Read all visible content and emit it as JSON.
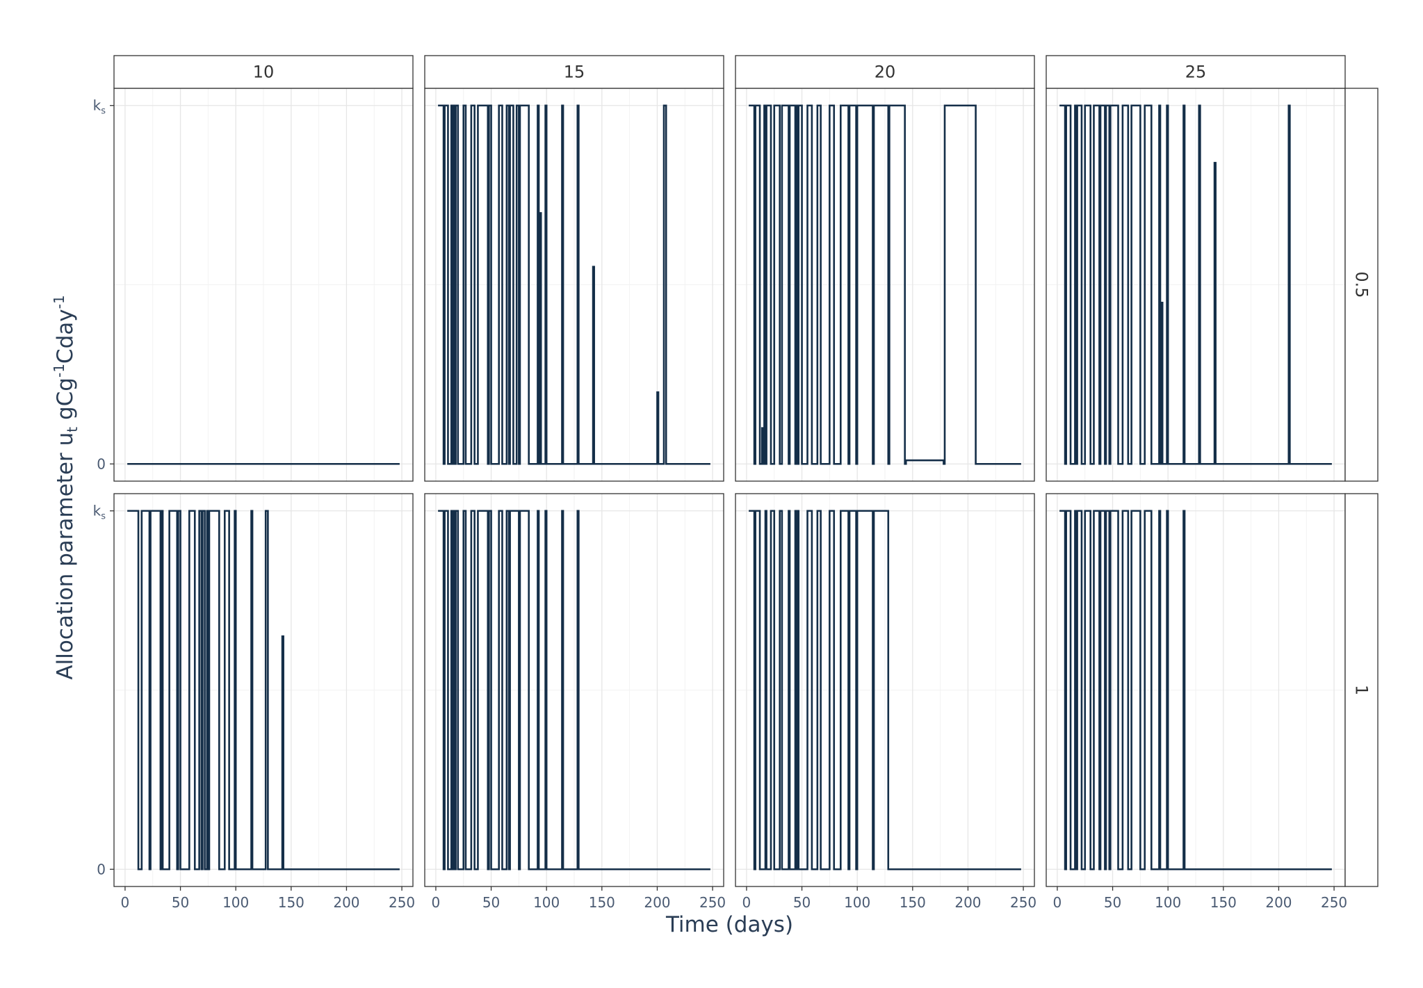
{
  "chart_data": {
    "type": "line",
    "layout": "facet-grid",
    "xlabel": "Time (days)",
    "ylabel": "Allocation parameter u",
    "ylabel_sub": "t",
    "ylabel_unit": " gCg",
    "ylabel_sup1": "-1",
    "ylabel_mid": "Cday",
    "ylabel_sup2": "-1",
    "xlim": [
      0,
      250
    ],
    "ylim": [
      0,
      1
    ],
    "x_ticks": [
      "0",
      "50",
      "100",
      "150",
      "200",
      "250"
    ],
    "y_ticks": [
      {
        "value": 0,
        "label": "0",
        "sub": ""
      },
      {
        "value": 1,
        "label": "k",
        "sub": "s"
      }
    ],
    "col_facets": [
      "10",
      "15",
      "20",
      "25"
    ],
    "row_facets": [
      "0.5",
      "1"
    ],
    "line_color": "#142e48",
    "grid": true,
    "panels": [
      {
        "col": "10",
        "row": "0.5",
        "x": [
          2,
          248
        ],
        "y": [
          0,
          0
        ]
      },
      {
        "col": "15",
        "row": "0.5",
        "x": [
          2,
          7,
          7,
          8,
          8,
          11,
          11,
          14,
          14,
          15,
          15,
          16,
          16,
          17,
          17,
          18,
          18,
          20,
          20,
          25,
          25,
          27,
          27,
          32,
          32,
          35,
          35,
          38,
          38,
          47,
          47,
          48,
          48,
          50,
          50,
          57,
          57,
          60,
          60,
          64,
          64,
          66,
          66,
          67,
          67,
          70,
          70,
          73,
          73,
          75,
          75,
          76,
          76,
          84,
          84,
          92,
          92,
          93,
          93,
          94,
          94,
          95,
          95,
          99,
          99,
          100,
          100,
          114,
          114,
          115,
          115,
          128,
          128,
          129,
          129,
          142,
          142,
          143,
          143,
          200,
          200,
          201,
          201,
          206,
          206,
          208,
          208,
          210,
          210,
          248
        ],
        "y": [
          1,
          1,
          0,
          0,
          1,
          1,
          0,
          0,
          1,
          1,
          0,
          0,
          1,
          1,
          0,
          0,
          1,
          1,
          0,
          0,
          1,
          1,
          0,
          0,
          1,
          1,
          0,
          0,
          1,
          1,
          0,
          0,
          1,
          1,
          0,
          0,
          1,
          1,
          0,
          0,
          1,
          1,
          0,
          0,
          1,
          1,
          0,
          0,
          1,
          1,
          0,
          0,
          1,
          1,
          0,
          0,
          1,
          1,
          0,
          0,
          0.7,
          0.7,
          0,
          0,
          1,
          1,
          0,
          0,
          1,
          1,
          0,
          0,
          1,
          1,
          0,
          0,
          0.55,
          0.55,
          0,
          0,
          0.2,
          0.2,
          0,
          0,
          1,
          1,
          0,
          0,
          0,
          0
        ]
      },
      {
        "col": "20",
        "row": "0.5",
        "x": [
          2,
          7,
          7,
          8,
          8,
          12,
          12,
          14,
          14,
          15,
          15,
          16,
          16,
          17,
          17,
          18,
          18,
          22,
          22,
          25,
          25,
          30,
          30,
          32,
          32,
          38,
          38,
          39,
          39,
          44,
          44,
          45,
          45,
          46,
          46,
          47,
          47,
          50,
          50,
          55,
          55,
          59,
          59,
          64,
          64,
          67,
          67,
          75,
          75,
          79,
          79,
          85,
          85,
          92,
          92,
          93,
          93,
          99,
          99,
          100,
          100,
          114,
          114,
          115,
          115,
          128,
          128,
          129,
          129,
          143,
          143,
          144,
          144,
          178,
          178,
          179,
          179,
          207,
          207,
          208,
          208,
          248
        ],
        "y": [
          1,
          1,
          0,
          0,
          1,
          1,
          0,
          0,
          0.1,
          0.1,
          0,
          0,
          1,
          1,
          0,
          0,
          1,
          1,
          0,
          0,
          1,
          1,
          0,
          0,
          1,
          1,
          0,
          0,
          1,
          1,
          0,
          0,
          1,
          1,
          0,
          0,
          1,
          1,
          0,
          0,
          1,
          1,
          0,
          0,
          1,
          1,
          0,
          0,
          1,
          1,
          0,
          0,
          1,
          1,
          0,
          0,
          1,
          1,
          0,
          0,
          1,
          1,
          0,
          0,
          1,
          1,
          0,
          0,
          1,
          1,
          0,
          0,
          0.01,
          0.01,
          0,
          0,
          1,
          1,
          0,
          0,
          0,
          0
        ]
      },
      {
        "col": "25",
        "row": "0.5",
        "x": [
          2,
          7,
          7,
          8,
          8,
          12,
          12,
          16,
          16,
          17,
          17,
          18,
          18,
          22,
          22,
          25,
          25,
          30,
          30,
          33,
          33,
          38,
          38,
          39,
          39,
          43,
          43,
          44,
          44,
          47,
          47,
          48,
          48,
          55,
          55,
          59,
          59,
          64,
          64,
          67,
          67,
          75,
          75,
          79,
          79,
          85,
          85,
          92,
          92,
          93,
          93,
          94,
          94,
          95,
          95,
          99,
          99,
          100,
          100,
          114,
          114,
          115,
          115,
          128,
          128,
          129,
          129,
          142,
          142,
          143,
          143,
          209,
          209,
          210,
          210,
          248
        ],
        "y": [
          1,
          1,
          0,
          0,
          1,
          1,
          0,
          0,
          1,
          1,
          0,
          0,
          1,
          1,
          0,
          0,
          1,
          1,
          0,
          0,
          1,
          1,
          0,
          0,
          1,
          1,
          0,
          0,
          1,
          1,
          0,
          0,
          1,
          1,
          0,
          0,
          1,
          1,
          0,
          0,
          1,
          1,
          0,
          0,
          1,
          1,
          0,
          0,
          1,
          1,
          0,
          0,
          0.45,
          0.45,
          0,
          0,
          1,
          1,
          0,
          0,
          1,
          1,
          0,
          0,
          1,
          1,
          0,
          0,
          0.84,
          0.84,
          0,
          0,
          1,
          1,
          0,
          0
        ]
      },
      {
        "col": "10",
        "row": "1",
        "x": [
          2,
          12,
          12,
          15,
          15,
          22,
          22,
          23,
          23,
          32,
          32,
          33,
          33,
          34,
          34,
          40,
          40,
          47,
          47,
          48,
          48,
          50,
          50,
          58,
          58,
          63,
          63,
          67,
          67,
          69,
          69,
          70,
          70,
          72,
          72,
          74,
          74,
          75,
          75,
          76,
          76,
          85,
          85,
          90,
          90,
          94,
          94,
          99,
          99,
          100,
          100,
          114,
          114,
          115,
          115,
          127,
          127,
          129,
          129,
          142,
          142,
          143,
          143,
          248
        ],
        "y": [
          1,
          1,
          0,
          0,
          1,
          1,
          0,
          0,
          1,
          1,
          0,
          0,
          1,
          1,
          0,
          0,
          1,
          1,
          0,
          0,
          1,
          1,
          0,
          0,
          1,
          1,
          0,
          0,
          1,
          1,
          0,
          0,
          1,
          1,
          0,
          0,
          1,
          1,
          0,
          0,
          1,
          1,
          0,
          0,
          1,
          1,
          0,
          0,
          1,
          1,
          0,
          0,
          1,
          1,
          0,
          0,
          1,
          1,
          0,
          0,
          0.65,
          0.65,
          0,
          0
        ]
      },
      {
        "col": "15",
        "row": "1",
        "x": [
          2,
          7,
          7,
          8,
          8,
          11,
          11,
          14,
          14,
          15,
          15,
          16,
          16,
          17,
          17,
          18,
          18,
          20,
          20,
          25,
          25,
          27,
          27,
          32,
          32,
          35,
          35,
          38,
          38,
          47,
          47,
          48,
          48,
          50,
          50,
          57,
          57,
          60,
          60,
          64,
          64,
          66,
          66,
          67,
          67,
          75,
          75,
          76,
          76,
          84,
          84,
          92,
          92,
          93,
          93,
          99,
          99,
          100,
          100,
          114,
          114,
          115,
          115,
          128,
          128,
          129,
          129,
          248
        ],
        "y": [
          1,
          1,
          0,
          0,
          1,
          1,
          0,
          0,
          1,
          1,
          0,
          0,
          1,
          1,
          0,
          0,
          1,
          1,
          0,
          0,
          1,
          1,
          0,
          0,
          1,
          1,
          0,
          0,
          1,
          1,
          0,
          0,
          1,
          1,
          0,
          0,
          1,
          1,
          0,
          0,
          1,
          1,
          0,
          0,
          1,
          1,
          0,
          0,
          1,
          1,
          0,
          0,
          1,
          1,
          0,
          0,
          1,
          1,
          0,
          0,
          1,
          1,
          0,
          0,
          1,
          1,
          0,
          0
        ]
      },
      {
        "col": "20",
        "row": "1",
        "x": [
          2,
          7,
          7,
          8,
          8,
          12,
          12,
          17,
          17,
          18,
          18,
          22,
          22,
          25,
          25,
          30,
          30,
          32,
          32,
          38,
          38,
          39,
          39,
          44,
          44,
          45,
          45,
          46,
          46,
          47,
          47,
          55,
          55,
          59,
          59,
          64,
          64,
          67,
          67,
          75,
          75,
          79,
          79,
          85,
          85,
          92,
          92,
          93,
          93,
          99,
          99,
          100,
          100,
          114,
          114,
          115,
          115,
          128,
          128,
          129,
          129,
          248
        ],
        "y": [
          1,
          1,
          0,
          0,
          1,
          1,
          0,
          0,
          1,
          1,
          0,
          0,
          1,
          1,
          0,
          0,
          1,
          1,
          0,
          0,
          1,
          1,
          0,
          0,
          1,
          1,
          0,
          0,
          1,
          1,
          0,
          0,
          1,
          1,
          0,
          0,
          1,
          1,
          0,
          0,
          1,
          1,
          0,
          0,
          1,
          1,
          0,
          0,
          1,
          1,
          0,
          0,
          1,
          1,
          0,
          0,
          1,
          1,
          0,
          0,
          0,
          0
        ]
      },
      {
        "col": "25",
        "row": "1",
        "x": [
          2,
          7,
          7,
          8,
          8,
          12,
          12,
          16,
          16,
          17,
          17,
          18,
          18,
          22,
          22,
          25,
          25,
          30,
          30,
          33,
          33,
          38,
          38,
          39,
          39,
          43,
          43,
          44,
          44,
          47,
          47,
          48,
          48,
          55,
          55,
          59,
          59,
          64,
          64,
          67,
          67,
          75,
          75,
          79,
          79,
          85,
          85,
          92,
          92,
          93,
          93,
          99,
          99,
          100,
          100,
          114,
          114,
          115,
          115,
          248
        ],
        "y": [
          1,
          1,
          0,
          0,
          1,
          1,
          0,
          0,
          1,
          1,
          0,
          0,
          1,
          1,
          0,
          0,
          1,
          1,
          0,
          0,
          1,
          1,
          0,
          0,
          1,
          1,
          0,
          0,
          1,
          1,
          0,
          0,
          1,
          1,
          0,
          0,
          1,
          1,
          0,
          0,
          1,
          1,
          0,
          0,
          1,
          1,
          0,
          0,
          1,
          1,
          0,
          0,
          1,
          1,
          0,
          0,
          1,
          1,
          0,
          0
        ]
      }
    ]
  }
}
